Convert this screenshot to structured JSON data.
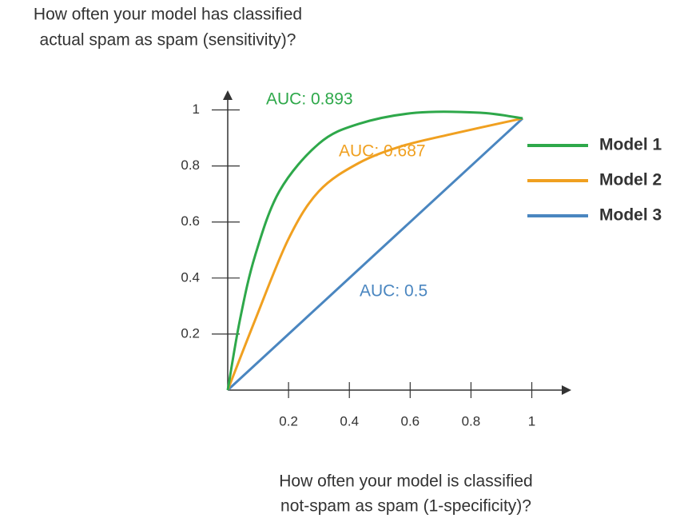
{
  "chart_data": {
    "type": "line",
    "ylabel": [
      "How often your model has classified",
      "actual spam as spam (sensitivity)?"
    ],
    "xlabel": [
      "How often your model is classified",
      "not-spam as spam (1-specificity)?"
    ],
    "xlim": [
      0,
      1.13
    ],
    "ylim": [
      0,
      1.07
    ],
    "xticks": [
      0.2,
      0.4,
      0.6,
      0.8,
      1
    ],
    "yticks": [
      0.2,
      0.4,
      0.6,
      0.8,
      1
    ],
    "grid": false,
    "legend": "right",
    "series": [
      {
        "name": "Model 1",
        "color": "#2ea84a",
        "x": [
          0,
          0.04,
          0.09,
          0.17,
          0.3,
          0.43,
          0.62,
          0.83,
          0.97
        ],
        "values": [
          0,
          0.25,
          0.48,
          0.71,
          0.88,
          0.95,
          0.99,
          0.99,
          0.97
        ]
      },
      {
        "name": "Model 2",
        "color": "#f0a020",
        "x": [
          0,
          0.09,
          0.2,
          0.3,
          0.43,
          0.57,
          0.72,
          0.97
        ],
        "values": [
          0,
          0.25,
          0.54,
          0.71,
          0.81,
          0.87,
          0.91,
          0.97
        ]
      },
      {
        "name": "Model 3",
        "color": "#4a86c0",
        "x": [
          0,
          0.97
        ],
        "values": [
          0,
          0.97
        ]
      }
    ],
    "annotations": [
      {
        "text": "AUC: 0.893",
        "color": "#2ea84a"
      },
      {
        "text": "AUC: 0.687",
        "color": "#f0a020"
      },
      {
        "text": "AUC: 0.5",
        "color": "#4a86c0"
      }
    ]
  }
}
